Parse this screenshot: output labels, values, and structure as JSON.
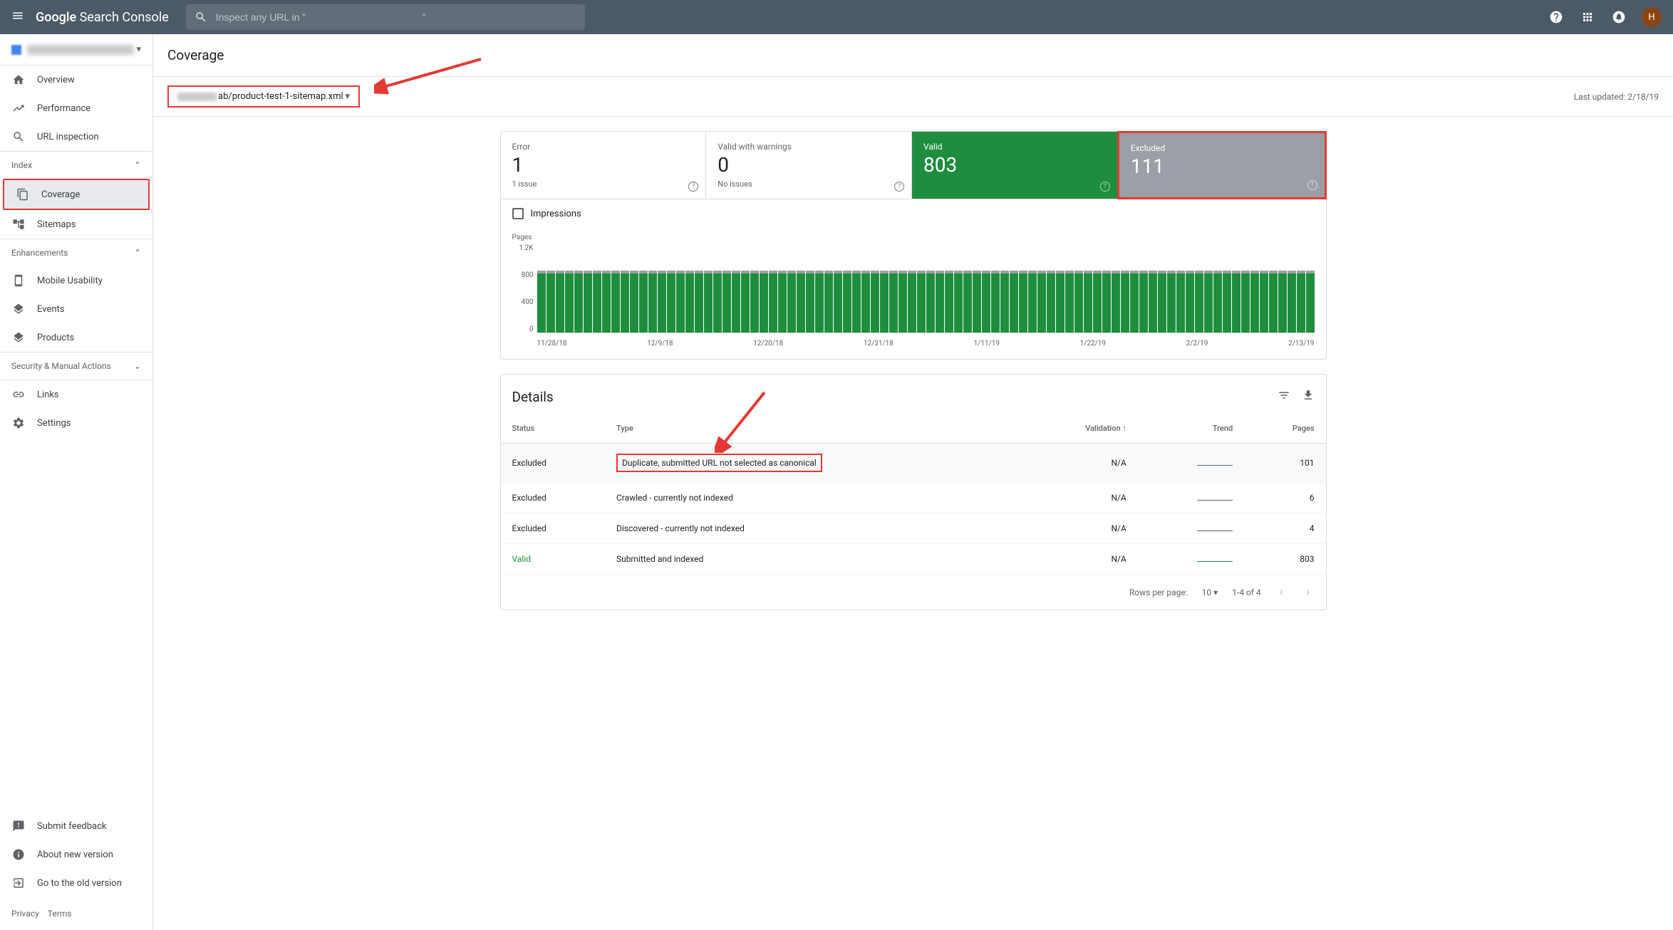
{
  "header": {
    "logo_strong": "Google",
    "logo_rest": " Search Console",
    "search_placeholder": "Inspect any URL in \"                                          \"",
    "avatar_letter": "H"
  },
  "sidebar": {
    "items": [
      {
        "label": "Overview",
        "icon": "home"
      },
      {
        "label": "Performance",
        "icon": "trending"
      },
      {
        "label": "URL inspection",
        "icon": "search"
      }
    ],
    "section_index": "Index",
    "index_items": [
      {
        "label": "Coverage",
        "icon": "copy",
        "active": true
      },
      {
        "label": "Sitemaps",
        "icon": "sitemap"
      }
    ],
    "section_enhancements": "Enhancements",
    "enh_items": [
      {
        "label": "Mobile Usability",
        "icon": "mobile"
      },
      {
        "label": "Events",
        "icon": "layers"
      },
      {
        "label": "Products",
        "icon": "layers"
      }
    ],
    "section_security": "Security & Manual Actions",
    "bottom_items": [
      {
        "label": "Links",
        "icon": "link"
      },
      {
        "label": "Settings",
        "icon": "gear"
      }
    ],
    "footer_items": [
      {
        "label": "Submit feedback",
        "icon": "feedback"
      },
      {
        "label": "About new version",
        "icon": "info"
      },
      {
        "label": "Go to the old version",
        "icon": "exit"
      }
    ],
    "privacy": "Privacy",
    "terms": "Terms"
  },
  "page": {
    "title": "Coverage",
    "filter_text": "ab/product-test-1-sitemap.xml",
    "last_updated": "Last updated: 2/18/19"
  },
  "stats": {
    "error": {
      "label": "Error",
      "value": "1",
      "sub": "1 issue"
    },
    "warning": {
      "label": "Valid with warnings",
      "value": "0",
      "sub": "No issues"
    },
    "valid": {
      "label": "Valid",
      "value": "803",
      "sub": ""
    },
    "excluded": {
      "label": "Excluded",
      "value": "111",
      "sub": ""
    }
  },
  "impressions_label": "Impressions",
  "chart": {
    "ylabel": "Pages",
    "yticks": [
      "1.2K",
      "800",
      "400",
      "0"
    ],
    "xticks": [
      "11/28/18",
      "12/9/18",
      "12/20/18",
      "12/31/18",
      "1/11/19",
      "1/22/19",
      "2/2/19",
      "2/13/19"
    ],
    "bar_count": 84,
    "main_height_pct": 67,
    "top_height_pct": 3,
    "colors": {
      "valid": "#1e8e3e",
      "excluded": "#9aa0a6",
      "grid": "#dadce0"
    }
  },
  "details": {
    "title": "Details",
    "columns": {
      "status": "Status",
      "type": "Type",
      "validation": "Validation",
      "trend": "Trend",
      "pages": "Pages"
    },
    "rows": [
      {
        "status": "Excluded",
        "type": "Duplicate, submitted URL not selected as canonical",
        "validation": "N/A",
        "pages": "101",
        "highlighted": true,
        "trend": "flat"
      },
      {
        "status": "Excluded",
        "type": "Crawled - currently not indexed",
        "validation": "N/A",
        "pages": "6",
        "trend": "flat"
      },
      {
        "status": "Excluded",
        "type": "Discovered - currently not indexed",
        "validation": "N/A",
        "pages": "4",
        "trend": "flat"
      },
      {
        "status": "Valid",
        "type": "Submitted and indexed",
        "validation": "N/A",
        "pages": "803",
        "valid": true,
        "trend": "green"
      }
    ]
  },
  "pagination": {
    "rows_label": "Rows per page:",
    "rows_value": "10",
    "range": "1-4 of 4"
  }
}
